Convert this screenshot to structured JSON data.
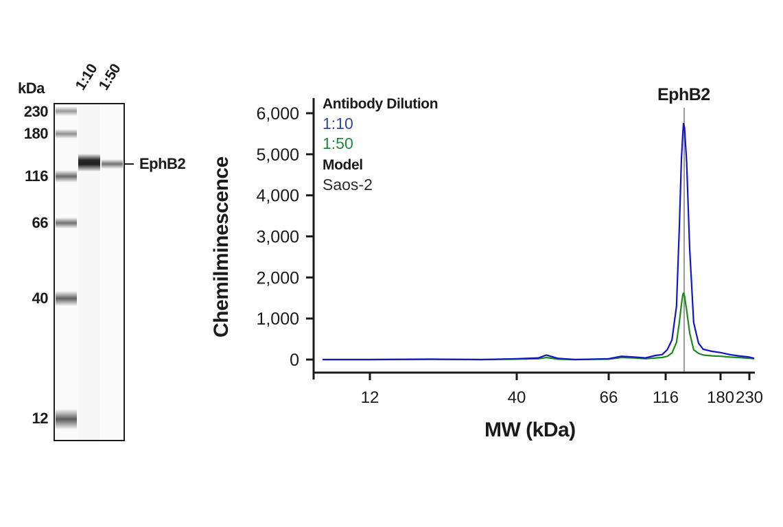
{
  "gel": {
    "unit_label": "kDa",
    "lane_labels": [
      "1:10",
      "1:50"
    ],
    "markers": [
      {
        "label": "230",
        "y": 163
      },
      {
        "label": "180",
        "y": 195
      },
      {
        "label": "116",
        "y": 257
      },
      {
        "label": "66",
        "y": 325
      },
      {
        "label": "40",
        "y": 435
      },
      {
        "label": "12",
        "y": 610
      }
    ],
    "target_label": "EphB2"
  },
  "legend": {
    "title": "Antibody Dilution",
    "series": [
      {
        "label": "1:10",
        "color": "#2d4aa0"
      },
      {
        "label": "1:50",
        "color": "#1c8a3a"
      }
    ],
    "model_title": "Model",
    "model_value": "Saos-2"
  },
  "chart_data": {
    "type": "line",
    "title": "",
    "peak_annotation": "EphB2",
    "xlabel": "MW (kDa)",
    "ylabel": "Chemilminescence",
    "x_scale": "log (MW, capillary electrophoresis)",
    "x_ticks": [
      12,
      40,
      66,
      116,
      180,
      230
    ],
    "y_ticks": [
      0,
      1000,
      2000,
      3000,
      4000,
      5000,
      6000
    ],
    "y_tick_labels": [
      "0",
      "1,000",
      "2,000",
      "3,000",
      "4,000",
      "5,000",
      "6,000"
    ],
    "ylim": [
      -300,
      6300
    ],
    "grid": false,
    "legend_position": "top-left",
    "peak_mw": 140,
    "series": [
      {
        "name": "1:10",
        "color": "#1414c8",
        "x": [
          8,
          12,
          20,
          30,
          40,
          45,
          47,
          50,
          55,
          66,
          75,
          85,
          95,
          105,
          112,
          118,
          124,
          130,
          134,
          137,
          139,
          140,
          141,
          143,
          146,
          150,
          155,
          160,
          170,
          180,
          195,
          210,
          230,
          240
        ],
        "y": [
          0,
          0,
          10,
          0,
          20,
          40,
          110,
          30,
          0,
          20,
          80,
          60,
          40,
          100,
          120,
          240,
          480,
          1300,
          3200,
          4900,
          5500,
          5750,
          5650,
          4800,
          2700,
          900,
          400,
          250,
          200,
          170,
          120,
          90,
          60,
          30
        ]
      },
      {
        "name": "1:50",
        "color": "#1a8a1a",
        "x": [
          8,
          12,
          20,
          30,
          40,
          45,
          47,
          50,
          55,
          66,
          75,
          85,
          95,
          105,
          112,
          118,
          124,
          130,
          134,
          137,
          139,
          140,
          141,
          143,
          146,
          150,
          155,
          160,
          170,
          180,
          195,
          210,
          230,
          240
        ],
        "y": [
          0,
          0,
          5,
          0,
          10,
          20,
          50,
          10,
          0,
          10,
          50,
          40,
          20,
          40,
          50,
          80,
          160,
          420,
          900,
          1350,
          1580,
          1620,
          1550,
          1200,
          650,
          240,
          150,
          110,
          90,
          80,
          60,
          50,
          30,
          20
        ]
      }
    ]
  }
}
